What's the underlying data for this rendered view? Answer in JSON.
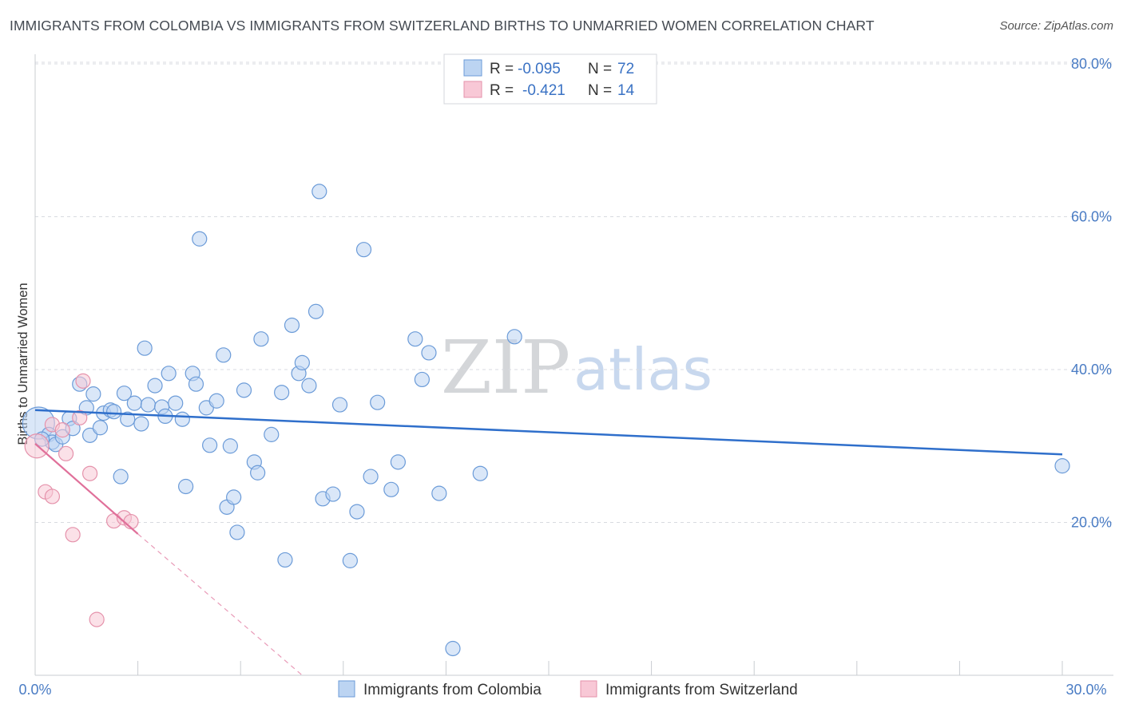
{
  "header": {
    "title": "IMMIGRANTS FROM COLOMBIA VS IMMIGRANTS FROM SWITZERLAND BIRTHS TO UNMARRIED WOMEN CORRELATION CHART",
    "source": "Source: ZipAtlas.com"
  },
  "watermark": {
    "zip": "ZIP",
    "atlas": "atlas"
  },
  "legend": {
    "rows": [
      {
        "r_label": "R = ",
        "r_value": "-0.095",
        "n_label": "N = ",
        "n_value": "72"
      },
      {
        "r_label": "R = ",
        "r_value": "-0.421",
        "n_label": "N = ",
        "n_value": "14"
      }
    ]
  },
  "bottom_legend": {
    "colombia": "Immigrants from Colombia",
    "switzerland": "Immigrants from Switzerland"
  },
  "colors": {
    "colombia_fill": "#bcd4f2",
    "colombia_stroke": "#6b9bd8",
    "colombia_line": "#2f6fcb",
    "switzerland_fill": "#f8c8d6",
    "switzerland_stroke": "#e592ab",
    "switzerland_line": "#e0709a",
    "grid": "#d8dbe0",
    "axis_text": "#4a7cc4"
  },
  "chart_data": {
    "type": "scatter",
    "title": "IMMIGRANTS FROM COLOMBIA VS IMMIGRANTS FROM SWITZERLAND BIRTHS TO UNMARRIED WOMEN CORRELATION CHART",
    "xlabel": "",
    "ylabel": "Births to Unmarried Women",
    "xlim": [
      0,
      30
    ],
    "ylim": [
      0,
      80
    ],
    "x_tick_labels": [
      "0.0%",
      "30.0%"
    ],
    "y_ticks": [
      20,
      40,
      60,
      80
    ],
    "y_tick_labels": [
      "20.0%",
      "40.0%",
      "60.0%",
      "80.0%"
    ],
    "grid": true,
    "series": [
      {
        "name": "Immigrants from Colombia",
        "r": -0.095,
        "n": 72,
        "trend": {
          "x0": 0,
          "y0": 34.7,
          "x1": 30,
          "y1": 28.9
        },
        "points": [
          [
            0.1,
            33.0
          ],
          [
            0.4,
            31.5
          ],
          [
            0.5,
            30.5
          ],
          [
            0.6,
            30.2
          ],
          [
            0.8,
            31.2
          ],
          [
            1.0,
            33.6
          ],
          [
            1.1,
            32.3
          ],
          [
            1.3,
            38.1
          ],
          [
            1.5,
            35.0
          ],
          [
            1.6,
            31.4
          ],
          [
            1.7,
            36.8
          ],
          [
            1.9,
            32.4
          ],
          [
            2.0,
            34.3
          ],
          [
            2.2,
            34.7
          ],
          [
            2.3,
            34.5
          ],
          [
            2.5,
            26.0
          ],
          [
            2.6,
            36.9
          ],
          [
            2.7,
            33.5
          ],
          [
            2.9,
            35.6
          ],
          [
            3.1,
            32.9
          ],
          [
            3.2,
            42.8
          ],
          [
            3.3,
            35.4
          ],
          [
            3.5,
            37.9
          ],
          [
            3.7,
            35.1
          ],
          [
            3.8,
            33.9
          ],
          [
            3.9,
            39.5
          ],
          [
            4.1,
            35.6
          ],
          [
            4.3,
            33.5
          ],
          [
            4.4,
            24.7
          ],
          [
            4.6,
            39.5
          ],
          [
            4.7,
            38.1
          ],
          [
            4.8,
            57.1
          ],
          [
            5.0,
            35.0
          ],
          [
            5.1,
            30.1
          ],
          [
            5.3,
            35.9
          ],
          [
            5.5,
            41.9
          ],
          [
            5.6,
            22.0
          ],
          [
            5.7,
            30.0
          ],
          [
            5.8,
            23.3
          ],
          [
            5.9,
            18.7
          ],
          [
            6.1,
            37.3
          ],
          [
            6.4,
            27.9
          ],
          [
            6.5,
            26.5
          ],
          [
            6.6,
            44.0
          ],
          [
            6.9,
            31.5
          ],
          [
            7.2,
            37.0
          ],
          [
            7.3,
            15.1
          ],
          [
            7.5,
            45.8
          ],
          [
            7.7,
            39.5
          ],
          [
            7.8,
            40.9
          ],
          [
            8.0,
            37.9
          ],
          [
            8.2,
            47.6
          ],
          [
            8.3,
            63.3
          ],
          [
            8.4,
            23.1
          ],
          [
            8.7,
            23.7
          ],
          [
            8.9,
            35.4
          ],
          [
            9.2,
            15.0
          ],
          [
            9.4,
            21.4
          ],
          [
            9.6,
            55.7
          ],
          [
            9.8,
            26.0
          ],
          [
            10.0,
            35.7
          ],
          [
            10.4,
            24.3
          ],
          [
            10.6,
            27.9
          ],
          [
            11.1,
            44.0
          ],
          [
            11.3,
            38.7
          ],
          [
            11.5,
            42.2
          ],
          [
            11.8,
            23.8
          ],
          [
            12.2,
            3.5
          ],
          [
            13.0,
            26.4
          ],
          [
            14.0,
            44.3
          ],
          [
            30.0,
            27.4
          ],
          [
            0.2,
            30.9
          ]
        ]
      },
      {
        "name": "Immigrants from Switzerland",
        "r": -0.421,
        "n": 14,
        "trend": {
          "x0": 0,
          "y0": 30.3,
          "x1": 3.0,
          "y1": 18.5,
          "dash_to_x": 7.8,
          "dash_to_y": 0
        },
        "points": [
          [
            0.05,
            30.0
          ],
          [
            0.5,
            32.8
          ],
          [
            0.8,
            32.1
          ],
          [
            0.9,
            29.0
          ],
          [
            1.1,
            18.4
          ],
          [
            1.3,
            33.7
          ],
          [
            1.4,
            38.5
          ],
          [
            1.6,
            26.4
          ],
          [
            0.3,
            24.0
          ],
          [
            0.5,
            23.4
          ],
          [
            1.8,
            7.3
          ],
          [
            2.3,
            20.2
          ],
          [
            2.6,
            20.6
          ],
          [
            2.8,
            20.1
          ]
        ]
      }
    ]
  }
}
